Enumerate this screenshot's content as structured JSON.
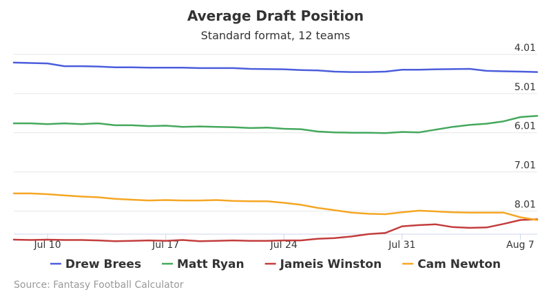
{
  "chart_data": {
    "type": "line",
    "title": "Average Draft Position",
    "subtitle": "Standard format, 12 teams",
    "credits": "Source: Fantasy Football Calculator",
    "y_reversed": true,
    "ylim": [
      4.01,
      8.6
    ],
    "y_ticks": [
      "4.01",
      "5.01",
      "6.01",
      "7.01",
      "8.01"
    ],
    "x_ticks": [
      {
        "label": "Jul 10",
        "day": 10
      },
      {
        "label": "Jul 17",
        "day": 17
      },
      {
        "label": "Jul 24",
        "day": 24
      },
      {
        "label": "Jul 31",
        "day": 31
      },
      {
        "label": "Aug 7",
        "day": 38
      }
    ],
    "x_range": [
      8,
      39
    ],
    "legend_position": "bottom",
    "grid": true,
    "series": [
      {
        "name": "Drew Brees",
        "color": "#4b5ddc",
        "points": [
          [
            8,
            4.22
          ],
          [
            10,
            4.24
          ],
          [
            11,
            4.31
          ],
          [
            12,
            4.31
          ],
          [
            13,
            4.32
          ],
          [
            14,
            4.34
          ],
          [
            15,
            4.34
          ],
          [
            16,
            4.35
          ],
          [
            18,
            4.35
          ],
          [
            19,
            4.36
          ],
          [
            20,
            4.36
          ],
          [
            21,
            4.36
          ],
          [
            22,
            4.38
          ],
          [
            24,
            4.39
          ],
          [
            25,
            4.41
          ],
          [
            26,
            4.42
          ],
          [
            27,
            4.45
          ],
          [
            28,
            4.46
          ],
          [
            29,
            4.46
          ],
          [
            30,
            4.45
          ],
          [
            31,
            4.4
          ],
          [
            32,
            4.4
          ],
          [
            33,
            4.39
          ],
          [
            35,
            4.38
          ],
          [
            36,
            4.43
          ],
          [
            37,
            4.44
          ],
          [
            38,
            4.45
          ],
          [
            39,
            4.46
          ]
        ]
      },
      {
        "name": "Matt Ryan",
        "color": "#44a85c",
        "points": [
          [
            8,
            5.77
          ],
          [
            9,
            5.77
          ],
          [
            10,
            5.79
          ],
          [
            11,
            5.77
          ],
          [
            12,
            5.79
          ],
          [
            13,
            5.77
          ],
          [
            14,
            5.82
          ],
          [
            15,
            5.82
          ],
          [
            16,
            5.84
          ],
          [
            17,
            5.83
          ],
          [
            18,
            5.86
          ],
          [
            19,
            5.85
          ],
          [
            20,
            5.86
          ],
          [
            21,
            5.87
          ],
          [
            22,
            5.89
          ],
          [
            23,
            5.88
          ],
          [
            24,
            5.91
          ],
          [
            25,
            5.92
          ],
          [
            26,
            5.98
          ],
          [
            27,
            6.0
          ],
          [
            28,
            6.01
          ],
          [
            29,
            6.01
          ],
          [
            30,
            6.02
          ],
          [
            31,
            5.99
          ],
          [
            32,
            6.0
          ],
          [
            33,
            5.93
          ],
          [
            34,
            5.86
          ],
          [
            35,
            5.81
          ],
          [
            36,
            5.78
          ],
          [
            37,
            5.72
          ],
          [
            38,
            5.61
          ],
          [
            39,
            5.58
          ]
        ]
      },
      {
        "name": "Jameis Winston",
        "color": "#c33c3c",
        "points": [
          [
            8,
            8.74
          ],
          [
            9,
            8.75
          ],
          [
            10,
            8.74
          ],
          [
            11,
            8.75
          ],
          [
            12,
            8.75
          ],
          [
            13,
            8.76
          ],
          [
            14,
            8.78
          ],
          [
            15,
            8.77
          ],
          [
            16,
            8.76
          ],
          [
            17,
            8.77
          ],
          [
            18,
            8.75
          ],
          [
            19,
            8.78
          ],
          [
            20,
            8.77
          ],
          [
            21,
            8.76
          ],
          [
            22,
            8.77
          ],
          [
            23,
            8.77
          ],
          [
            24,
            8.76
          ],
          [
            25,
            8.76
          ],
          [
            26,
            8.72
          ],
          [
            27,
            8.7
          ],
          [
            28,
            8.66
          ],
          [
            29,
            8.6
          ],
          [
            30,
            8.57
          ],
          [
            31,
            8.4
          ],
          [
            32,
            8.37
          ],
          [
            33,
            8.35
          ],
          [
            34,
            8.42
          ],
          [
            35,
            8.44
          ],
          [
            36,
            8.43
          ],
          [
            37,
            8.34
          ],
          [
            38,
            8.24
          ],
          [
            39,
            8.22
          ]
        ]
      },
      {
        "name": "Cam Newton",
        "color": "#f5a623",
        "points": [
          [
            8,
            7.56
          ],
          [
            9,
            7.56
          ],
          [
            10,
            7.58
          ],
          [
            11,
            7.61
          ],
          [
            12,
            7.64
          ],
          [
            13,
            7.66
          ],
          [
            14,
            7.7
          ],
          [
            15,
            7.72
          ],
          [
            16,
            7.74
          ],
          [
            17,
            7.73
          ],
          [
            18,
            7.74
          ],
          [
            19,
            7.74
          ],
          [
            20,
            7.73
          ],
          [
            21,
            7.75
          ],
          [
            22,
            7.76
          ],
          [
            23,
            7.76
          ],
          [
            24,
            7.8
          ],
          [
            25,
            7.85
          ],
          [
            26,
            7.93
          ],
          [
            27,
            7.99
          ],
          [
            28,
            8.05
          ],
          [
            29,
            8.08
          ],
          [
            30,
            8.09
          ],
          [
            31,
            8.04
          ],
          [
            32,
            8.0
          ],
          [
            33,
            8.02
          ],
          [
            34,
            8.04
          ],
          [
            35,
            8.05
          ],
          [
            36,
            8.05
          ],
          [
            37,
            8.05
          ],
          [
            38,
            8.17
          ],
          [
            39,
            8.24
          ]
        ]
      }
    ]
  }
}
